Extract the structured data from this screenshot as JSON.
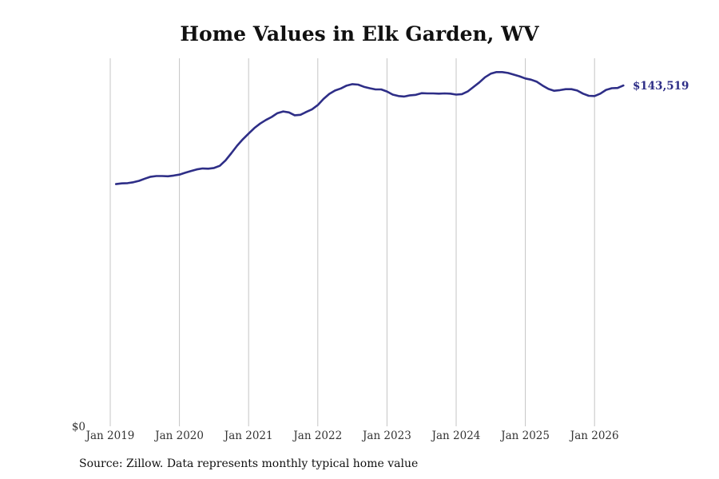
{
  "chart_data": {
    "type": "line",
    "title": "Home Values in Elk Garden, WV",
    "xlabel": "",
    "ylabel": "",
    "x_ticks": [
      "Jan 2019",
      "Jan 2020",
      "Jan 2021",
      "Jan 2022",
      "Jan 2023",
      "Jan 2024",
      "Jan 2025",
      "Jan 2026"
    ],
    "y_ticks": [
      "$0"
    ],
    "ylim": [
      0,
      155000
    ],
    "grid": "vertical",
    "line_color": "#2e2e87",
    "end_label": "$143,519",
    "series": [
      {
        "points": [
          [
            "2019-02",
            102000
          ],
          [
            "2019-03",
            102300
          ],
          [
            "2019-04",
            102400
          ],
          [
            "2019-05",
            102800
          ],
          [
            "2019-06",
            103400
          ],
          [
            "2019-07",
            104300
          ],
          [
            "2019-08",
            105100
          ],
          [
            "2019-09",
            105400
          ],
          [
            "2019-10",
            105400
          ],
          [
            "2019-11",
            105300
          ],
          [
            "2019-12",
            105600
          ],
          [
            "2020-01",
            106000
          ],
          [
            "2020-02",
            106800
          ],
          [
            "2020-03",
            107500
          ],
          [
            "2020-04",
            108200
          ],
          [
            "2020-05",
            108600
          ],
          [
            "2020-06",
            108500
          ],
          [
            "2020-07",
            108800
          ],
          [
            "2020-08",
            109700
          ],
          [
            "2020-09",
            112000
          ],
          [
            "2020-10",
            115000
          ],
          [
            "2020-11",
            118200
          ],
          [
            "2020-12",
            120900
          ],
          [
            "2021-01",
            123300
          ],
          [
            "2021-02",
            125600
          ],
          [
            "2021-03",
            127500
          ],
          [
            "2021-04",
            129000
          ],
          [
            "2021-05",
            130300
          ],
          [
            "2021-06",
            131900
          ],
          [
            "2021-07",
            132600
          ],
          [
            "2021-08",
            132200
          ],
          [
            "2021-09",
            131000
          ],
          [
            "2021-10",
            131200
          ],
          [
            "2021-11",
            132400
          ],
          [
            "2021-12",
            133500
          ],
          [
            "2022-01",
            135300
          ],
          [
            "2022-02",
            137900
          ],
          [
            "2022-03",
            140000
          ],
          [
            "2022-04",
            141400
          ],
          [
            "2022-05",
            142300
          ],
          [
            "2022-06",
            143500
          ],
          [
            "2022-07",
            144100
          ],
          [
            "2022-08",
            143900
          ],
          [
            "2022-09",
            143000
          ],
          [
            "2022-10",
            142400
          ],
          [
            "2022-11",
            141900
          ],
          [
            "2022-12",
            141900
          ],
          [
            "2023-01",
            141000
          ],
          [
            "2023-02",
            139700
          ],
          [
            "2023-03",
            139100
          ],
          [
            "2023-04",
            138900
          ],
          [
            "2023-05",
            139400
          ],
          [
            "2023-06",
            139600
          ],
          [
            "2023-07",
            140300
          ],
          [
            "2023-08",
            140200
          ],
          [
            "2023-09",
            140200
          ],
          [
            "2023-10",
            140100
          ],
          [
            "2023-11",
            140200
          ],
          [
            "2023-12",
            140100
          ],
          [
            "2024-01",
            139700
          ],
          [
            "2024-02",
            139900
          ],
          [
            "2024-03",
            141000
          ],
          [
            "2024-04",
            142900
          ],
          [
            "2024-05",
            144800
          ],
          [
            "2024-06",
            147000
          ],
          [
            "2024-07",
            148500
          ],
          [
            "2024-08",
            149200
          ],
          [
            "2024-09",
            149200
          ],
          [
            "2024-10",
            148800
          ],
          [
            "2024-11",
            148100
          ],
          [
            "2024-12",
            147400
          ],
          [
            "2025-01",
            146500
          ],
          [
            "2025-02",
            146000
          ],
          [
            "2025-03",
            145100
          ],
          [
            "2025-04",
            143500
          ],
          [
            "2025-05",
            142100
          ],
          [
            "2025-06",
            141300
          ],
          [
            "2025-07",
            141600
          ],
          [
            "2025-08",
            142000
          ],
          [
            "2025-09",
            142000
          ],
          [
            "2025-10",
            141400
          ],
          [
            "2025-11",
            140100
          ],
          [
            "2025-12",
            139200
          ],
          [
            "2026-01",
            139100
          ],
          [
            "2026-02",
            140100
          ],
          [
            "2026-03",
            141700
          ],
          [
            "2026-04",
            142400
          ],
          [
            "2026-05",
            142500
          ],
          [
            "2026-06",
            143519
          ]
        ]
      }
    ]
  },
  "source_note": "Source: Zillow. Data represents monthly typical home value"
}
